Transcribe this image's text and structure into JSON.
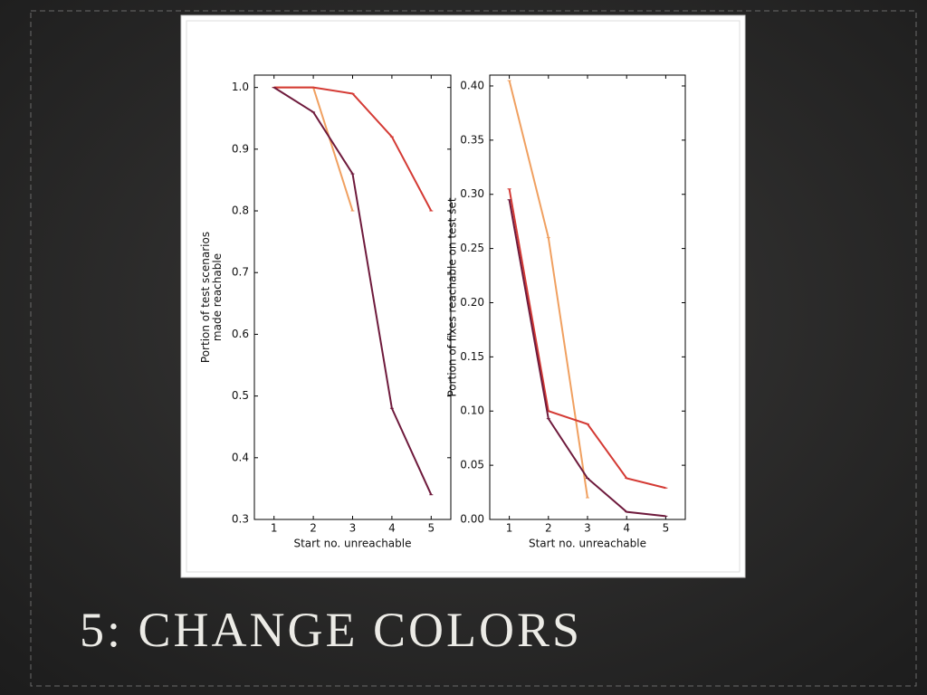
{
  "slide": {
    "title": "5: CHANGE COLORS"
  },
  "chart_data": [
    {
      "type": "line",
      "xlabel": "Start no. unreachable",
      "ylabel": [
        "Portion of test scenarios",
        "made reachable"
      ],
      "x": [
        1,
        2,
        3,
        4,
        5
      ],
      "xlim": [
        0.5,
        5.5
      ],
      "xticks": [
        1,
        2,
        3,
        4,
        5
      ],
      "ylim": [
        0.3,
        1.02
      ],
      "yticks": [
        0.3,
        0.4,
        0.5,
        0.6,
        0.7,
        0.8,
        0.9,
        {
          "value": 1,
          "label": "1.0"
        }
      ],
      "series": [
        {
          "color": "#f0a060",
          "values": [
            1.0,
            1.0,
            0.8,
            null,
            null
          ]
        },
        {
          "color": "#d43a34",
          "values": [
            1.0,
            1.0,
            0.99,
            0.92,
            0.8
          ]
        },
        {
          "color": "#6e1a3c",
          "values": [
            1.0,
            0.96,
            0.86,
            0.48,
            0.34
          ]
        }
      ]
    },
    {
      "type": "line",
      "xlabel": "Start no. unreachable",
      "ylabel": [
        "Portion of fixes reachable on test set"
      ],
      "x": [
        1,
        2,
        3,
        4,
        5
      ],
      "xlim": [
        0.5,
        5.5
      ],
      "xticks": [
        1,
        2,
        3,
        4,
        5
      ],
      "ylim": [
        0,
        0.41
      ],
      "yticks": [
        {
          "value": 0,
          "label": "0.00"
        },
        0.05,
        {
          "value": 0.1,
          "label": "0.10"
        },
        0.15,
        {
          "value": 0.2,
          "label": "0.20"
        },
        0.25,
        {
          "value": 0.3,
          "label": "0.30"
        },
        0.35,
        {
          "value": 0.4,
          "label": "0.40"
        }
      ],
      "series": [
        {
          "color": "#f0a060",
          "values": [
            0.405,
            0.26,
            0.02,
            null,
            null
          ]
        },
        {
          "color": "#d43a34",
          "values": [
            0.305,
            0.1,
            0.088,
            0.038,
            0.029
          ]
        },
        {
          "color": "#6e1a3c",
          "values": [
            0.295,
            0.093,
            0.038,
            0.007,
            0.003
          ]
        }
      ]
    }
  ]
}
